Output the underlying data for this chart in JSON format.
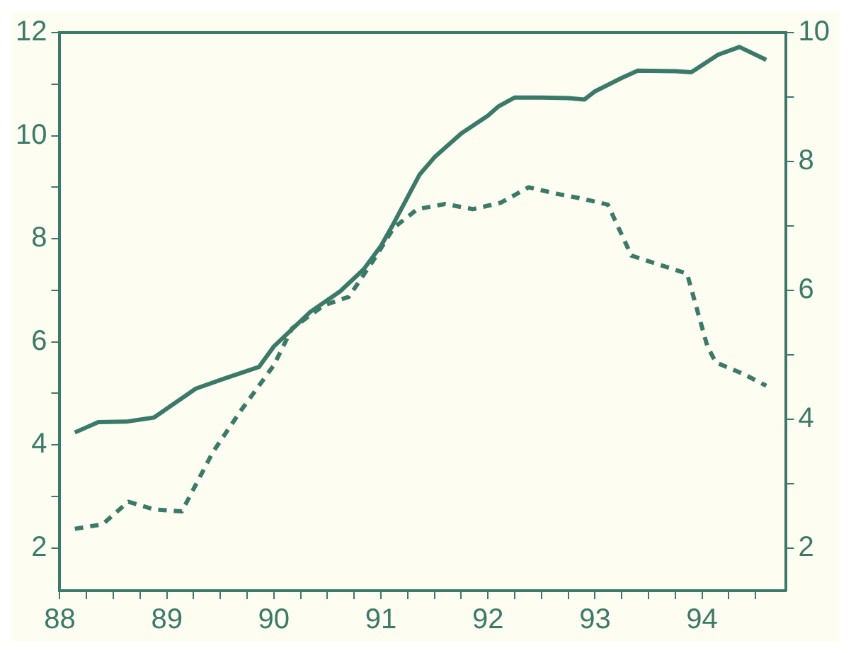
{
  "chart_data": {
    "type": "line",
    "xlim": [
      88,
      94.78
    ],
    "xticks": [
      88,
      {
        "value": 88.25,
        "label": null
      },
      {
        "value": 88.5,
        "label": null
      },
      {
        "value": 88.75,
        "label": null
      },
      89,
      {
        "value": 89.25,
        "label": null
      },
      {
        "value": 89.5,
        "label": null
      },
      {
        "value": 89.75,
        "label": null
      },
      90,
      {
        "value": 90.25,
        "label": null
      },
      {
        "value": 90.5,
        "label": null
      },
      {
        "value": 90.75,
        "label": null
      },
      91,
      {
        "value": 91.25,
        "label": null
      },
      {
        "value": 91.5,
        "label": null
      },
      {
        "value": 91.75,
        "label": null
      },
      92,
      {
        "value": 92.25,
        "label": null
      },
      {
        "value": 92.5,
        "label": null
      },
      {
        "value": 92.75,
        "label": null
      },
      93,
      {
        "value": 93.25,
        "label": null
      },
      {
        "value": 93.5,
        "label": null
      },
      {
        "value": 93.75,
        "label": null
      },
      94,
      {
        "value": 94.25,
        "label": null
      },
      {
        "value": 94.5,
        "label": null
      }
    ],
    "ylim": [
      1.17,
      12
    ],
    "yticks": [
      2,
      {
        "value": 3,
        "label": null
      },
      4,
      {
        "value": 5,
        "label": null
      },
      6,
      {
        "value": 7,
        "label": null
      },
      8,
      {
        "value": 9,
        "label": null
      },
      10,
      {
        "value": 11,
        "label": null
      },
      12
    ],
    "y2lim": [
      1.34,
      10
    ],
    "y2ticks": [
      2,
      {
        "value": 3,
        "label": null
      },
      4,
      {
        "value": 5,
        "label": null
      },
      6,
      {
        "value": 7,
        "label": null
      },
      8,
      {
        "value": 9,
        "label": null
      },
      10
    ],
    "grid": false,
    "legend": false,
    "marker": "none",
    "series": [
      {
        "color": "#3a7a68",
        "line_style": "solid",
        "x": [
          88.14,
          88.36,
          88.62,
          88.88,
          89.27,
          89.53,
          89.86,
          90.0,
          90.34,
          90.62,
          90.84,
          91.0,
          91.12,
          91.36,
          91.5,
          91.75,
          92.0,
          92.1,
          92.25,
          92.5,
          92.75,
          92.9,
          93.0,
          93.25,
          93.4,
          93.75,
          93.9,
          94.15,
          94.35,
          94.6
        ],
        "values": [
          4.24,
          4.44,
          4.45,
          4.53,
          5.09,
          5.28,
          5.51,
          5.91,
          6.58,
          6.98,
          7.41,
          7.86,
          8.3,
          9.24,
          9.58,
          10.04,
          10.39,
          10.57,
          10.74,
          10.74,
          10.73,
          10.7,
          10.86,
          11.12,
          11.26,
          11.25,
          11.23,
          11.57,
          11.72,
          11.47
        ]
      },
      {
        "color": "#3a7a68",
        "line_style": "dashed",
        "axis": "y2",
        "x": [
          88.14,
          88.4,
          88.64,
          88.88,
          89.14,
          89.43,
          89.69,
          90.0,
          90.17,
          90.47,
          90.7,
          90.92,
          91.12,
          91.34,
          91.6,
          91.86,
          92.12,
          92.38,
          92.64,
          92.86,
          93.12,
          93.34,
          93.56,
          93.86,
          94.05,
          94.13,
          94.39,
          94.6
        ],
        "values": [
          2.3,
          2.37,
          2.72,
          2.6,
          2.57,
          3.49,
          4.13,
          4.84,
          5.41,
          5.77,
          5.9,
          6.44,
          6.97,
          7.26,
          7.34,
          7.26,
          7.36,
          7.6,
          7.5,
          7.43,
          7.33,
          6.54,
          6.42,
          6.26,
          5.13,
          4.88,
          4.7,
          4.52
        ]
      }
    ]
  }
}
